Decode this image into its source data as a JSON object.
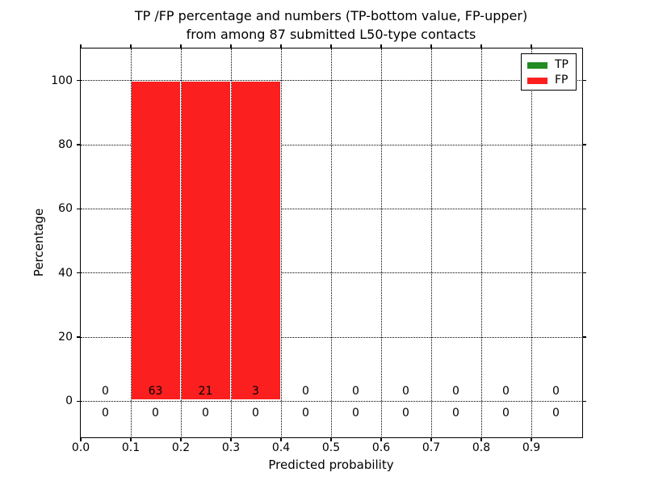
{
  "title": {
    "line1": "TP /FP percentage and numbers (TP-bottom value, FP-upper)",
    "line2": "from among 87 submitted L50-type contacts"
  },
  "axes": {
    "xlabel": "Predicted probability",
    "ylabel": "Percentage",
    "xtick_labels": [
      "0.0",
      "0.1",
      "0.2",
      "0.3",
      "0.4",
      "0.5",
      "0.6",
      "0.7",
      "0.8",
      "0.9"
    ],
    "xtick_values": [
      0.0,
      0.1,
      0.2,
      0.3,
      0.4,
      0.5,
      0.6,
      0.7,
      0.8,
      0.9
    ],
    "ytick_labels": [
      "0",
      "20",
      "40",
      "60",
      "80",
      "100"
    ],
    "ytick_values": [
      0,
      20,
      40,
      60,
      80,
      100
    ],
    "xlim": [
      0.0,
      1.0
    ],
    "ylim": [
      -11,
      110
    ],
    "grid_style": "dotted"
  },
  "legend": {
    "position": "upper right",
    "items": [
      {
        "label": "TP",
        "color": "#228b22"
      },
      {
        "label": "FP",
        "color": "#fb1f1f"
      }
    ]
  },
  "chart_data": {
    "type": "bar",
    "title": "TP /FP percentage and numbers (TP-bottom value, FP-upper) from among 87 submitted L50-type contacts",
    "xlabel": "Predicted probability",
    "ylabel": "Percentage",
    "total_submitted_contacts": 87,
    "bin_edges": [
      0.0,
      0.1,
      0.2,
      0.3,
      0.4,
      0.5,
      0.6,
      0.7,
      0.8,
      0.9,
      1.0
    ],
    "bin_centers": [
      0.05,
      0.15,
      0.25,
      0.35,
      0.45,
      0.55,
      0.65,
      0.75,
      0.85,
      0.95
    ],
    "series": [
      {
        "name": "TP",
        "color": "#228b22",
        "percent": [
          0,
          0,
          0,
          0,
          0,
          0,
          0,
          0,
          0,
          0
        ],
        "counts": [
          0,
          0,
          0,
          0,
          0,
          0,
          0,
          0,
          0,
          0
        ]
      },
      {
        "name": "FP",
        "color": "#fb1f1f",
        "percent": [
          0,
          100,
          100,
          100,
          0,
          0,
          0,
          0,
          0,
          0
        ],
        "counts": [
          0,
          63,
          21,
          3,
          0,
          0,
          0,
          0,
          0,
          0
        ]
      }
    ],
    "xlim": [
      0.0,
      1.0
    ],
    "ylim": [
      -11,
      110
    ],
    "grid": true,
    "legend_position": "upper right"
  }
}
